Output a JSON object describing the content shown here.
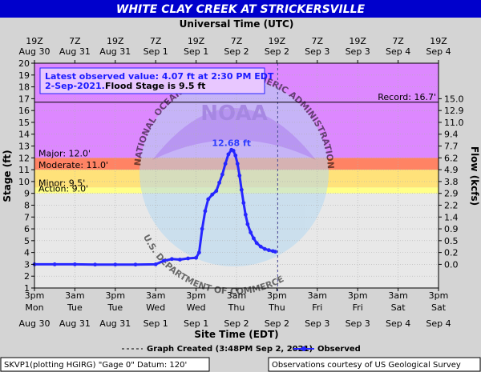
{
  "title": "WHITE CLAY CREEK AT STRICKERSVILLE",
  "colors": {
    "title_bg": "#0000cc",
    "plot_bg": "#e8e8e8",
    "major": "#dd88ff",
    "major_flood": "#ff5e5e",
    "moderate": "#ffb06b",
    "minor": "#ffe27a",
    "action": "#ffff88",
    "observed": "#2626ff"
  },
  "chart_data": {
    "type": "line",
    "title": "WHITE CLAY CREEK AT STRICKERSVILLE",
    "top_axis_title": "Universal Time (UTC)",
    "xlabel": "Site Time (EDT)",
    "ylabel": "Stage (ft)",
    "y2label": "Flow (kcfs)",
    "ylim": [
      1,
      20
    ],
    "yticks": [
      1,
      2,
      3,
      4,
      5,
      6,
      7,
      8,
      9,
      10,
      11,
      12,
      13,
      14,
      15,
      16,
      17,
      18,
      19,
      20
    ],
    "xlim": [
      0,
      30
    ],
    "bottom_ticks": [
      {
        "x": 0,
        "top": "3pm",
        "mid": "Mon",
        "bot": "Aug 30"
      },
      {
        "x": 2,
        "top": "3am",
        "mid": "Tue",
        "bot": "Aug 31"
      },
      {
        "x": 4,
        "top": "3pm",
        "mid": "Tue",
        "bot": "Aug 31"
      },
      {
        "x": 6,
        "top": "3am",
        "mid": "Wed",
        "bot": "Sep 1"
      },
      {
        "x": 8,
        "top": "3pm",
        "mid": "Wed",
        "bot": "Sep 1"
      },
      {
        "x": 10,
        "top": "3am",
        "mid": "Thu",
        "bot": "Sep 2"
      },
      {
        "x": 12,
        "top": "3pm",
        "mid": "Thu",
        "bot": "Sep 2"
      },
      {
        "x": 14,
        "top": "3am",
        "mid": "Fri",
        "bot": "Sep 3"
      },
      {
        "x": 16,
        "top": "3pm",
        "mid": "Fri",
        "bot": "Sep 3"
      },
      {
        "x": 18,
        "top": "3am",
        "mid": "Sat",
        "bot": "Sep 4"
      },
      {
        "x": 20,
        "top": "3pm",
        "mid": "Sat",
        "bot": "Sep 4"
      }
    ],
    "top_ticks": [
      {
        "x": 0,
        "time": "19Z",
        "date": "Aug 30"
      },
      {
        "x": 2,
        "time": "7Z",
        "date": "Aug 31"
      },
      {
        "x": 4,
        "time": "19Z",
        "date": "Aug 31"
      },
      {
        "x": 6,
        "time": "7Z",
        "date": "Sep 1"
      },
      {
        "x": 8,
        "time": "19Z",
        "date": "Sep 1"
      },
      {
        "x": 10,
        "time": "7Z",
        "date": "Sep 2"
      },
      {
        "x": 12,
        "time": "19Z",
        "date": "Sep 2"
      },
      {
        "x": 14,
        "time": "7Z",
        "date": "Sep 3"
      },
      {
        "x": 16,
        "time": "19Z",
        "date": "Sep 3"
      },
      {
        "x": 18,
        "time": "7Z",
        "date": "Sep 4"
      },
      {
        "x": 20,
        "time": "19Z",
        "date": "Sep 4"
      }
    ],
    "flow_ticks": [
      {
        "stage": 3,
        "label": "0.0"
      },
      {
        "stage": 4,
        "label": "0.2"
      },
      {
        "stage": 5,
        "label": "0.5"
      },
      {
        "stage": 6,
        "label": "0.9"
      },
      {
        "stage": 7,
        "label": "1.4"
      },
      {
        "stage": 8,
        "label": "2.2"
      },
      {
        "stage": 9,
        "label": "2.9"
      },
      {
        "stage": 10,
        "label": "3.8"
      },
      {
        "stage": 11,
        "label": "4.9"
      },
      {
        "stage": 12,
        "label": "6.2"
      },
      {
        "stage": 13,
        "label": "7.7"
      },
      {
        "stage": 14,
        "label": "9.4"
      },
      {
        "stage": 15,
        "label": "11.0"
      },
      {
        "stage": 16,
        "label": "12.9"
      },
      {
        "stage": 17,
        "label": "15.0"
      }
    ],
    "flood_categories": [
      {
        "name": "Action",
        "label": "Action: 9.0'",
        "from": 9.0,
        "to": 9.5,
        "color_key": "action"
      },
      {
        "name": "Minor",
        "label": "Minor: 9.5'",
        "from": 9.5,
        "to": 11.0,
        "color_key": "minor"
      },
      {
        "name": "Moderate",
        "label": "Moderate: 11.0'",
        "from": 11.0,
        "to": 12.0,
        "color_key": "moderate"
      },
      {
        "name": "Major",
        "label": "Major: 12.0'",
        "from": 12.0,
        "to": 20.0,
        "color_key": "major"
      }
    ],
    "record": {
      "label": "Record: 16.7'",
      "value": 16.7
    },
    "graph_created_x": 12,
    "peak": {
      "label": "12.68 ft",
      "x": 9.75,
      "y": 12.68
    },
    "series": [
      {
        "name": "Observed",
        "points": [
          [
            0.0,
            3.0
          ],
          [
            1.0,
            3.0
          ],
          [
            2.0,
            3.0
          ],
          [
            3.0,
            2.98
          ],
          [
            4.0,
            2.98
          ],
          [
            5.0,
            2.98
          ],
          [
            6.0,
            3.0
          ],
          [
            6.4,
            3.3
          ],
          [
            6.8,
            3.45
          ],
          [
            7.2,
            3.4
          ],
          [
            7.6,
            3.5
          ],
          [
            8.0,
            3.55
          ],
          [
            8.15,
            4.0
          ],
          [
            8.3,
            6.0
          ],
          [
            8.45,
            7.5
          ],
          [
            8.6,
            8.5
          ],
          [
            8.8,
            8.9
          ],
          [
            9.0,
            9.2
          ],
          [
            9.15,
            9.9
          ],
          [
            9.3,
            10.6
          ],
          [
            9.45,
            11.5
          ],
          [
            9.6,
            12.3
          ],
          [
            9.75,
            12.68
          ],
          [
            9.85,
            12.6
          ],
          [
            9.95,
            12.2
          ],
          [
            10.05,
            11.5
          ],
          [
            10.15,
            10.5
          ],
          [
            10.25,
            9.3
          ],
          [
            10.35,
            8.2
          ],
          [
            10.45,
            7.2
          ],
          [
            10.55,
            6.4
          ],
          [
            10.7,
            5.7
          ],
          [
            10.85,
            5.2
          ],
          [
            11.0,
            4.8
          ],
          [
            11.2,
            4.5
          ],
          [
            11.4,
            4.3
          ],
          [
            11.6,
            4.2
          ],
          [
            11.8,
            4.12
          ],
          [
            11.92,
            4.07
          ]
        ]
      }
    ],
    "legend": [
      {
        "key": "graph_created",
        "label": "Graph Created (3:48PM Sep 2, 2021)"
      },
      {
        "key": "observed",
        "label": "Observed"
      }
    ]
  },
  "latest_box": {
    "line1": "Latest observed value: 4.07 ft at 2:30 PM EDT",
    "line2_date": "2-Sep-2021.",
    "line2_rest": "Flood Stage is 9.5 ft"
  },
  "watermark": {
    "upper_arc": "NATIONAL OCEANIC AND ATMOSPHERIC ADMINISTRATION",
    "center": "NOAA",
    "lower_arc": "U.S. DEPARTMENT OF COMMERCE"
  },
  "footer": {
    "left": "SKVP1(plotting HGIRG) \"Gage 0\" Datum: 120'",
    "right": "Observations courtesy of US Geological Survey"
  }
}
